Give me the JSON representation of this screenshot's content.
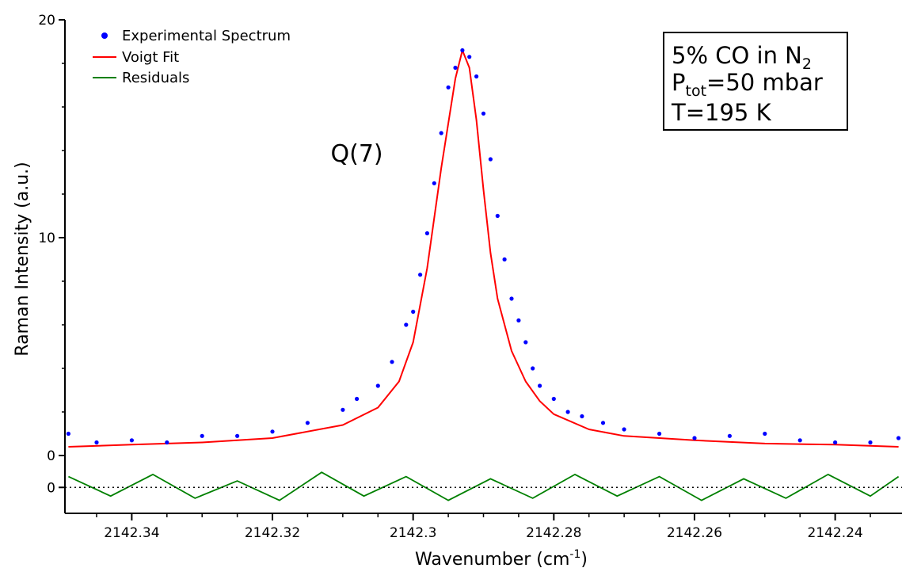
{
  "chart_data": {
    "type": "scatter",
    "xlabel": "Wavenumber (cm",
    "xlabel_sup": "-1",
    "xlabel_end": ")",
    "ylabel": "Raman Intensity (a.u.)",
    "x_reversed": true,
    "xlim": [
      2142.3495,
      2142.2305
    ],
    "ylim": [
      0,
      20
    ],
    "x_ticks": [
      2142.34,
      2142.32,
      2142.3,
      2142.28,
      2142.26,
      2142.24
    ],
    "x_tick_labels": [
      "2142.34",
      "2142.32",
      "2142.3",
      "2142.28",
      "2142.26",
      "2142.24"
    ],
    "y_ticks": [
      0,
      10,
      20
    ],
    "y_tick_labels": [
      "0",
      "10",
      "20"
    ],
    "residual_panel": {
      "ylim": [
        -1.2,
        1.0
      ],
      "y_ticks": [
        0
      ],
      "y_tick_labels": [
        "0"
      ],
      "zero_line": "dotted"
    },
    "grid": false,
    "legend_placement": "top-left",
    "series": [
      {
        "name": "Experimental Spectrum",
        "style": "markers",
        "color": "#0000ff",
        "x": [
          2142.349,
          2142.345,
          2142.34,
          2142.335,
          2142.33,
          2142.325,
          2142.32,
          2142.315,
          2142.31,
          2142.308,
          2142.305,
          2142.303,
          2142.301,
          2142.3,
          2142.299,
          2142.298,
          2142.297,
          2142.296,
          2142.295,
          2142.294,
          2142.293,
          2142.292,
          2142.291,
          2142.29,
          2142.289,
          2142.288,
          2142.287,
          2142.286,
          2142.285,
          2142.284,
          2142.283,
          2142.282,
          2142.28,
          2142.278,
          2142.276,
          2142.273,
          2142.27,
          2142.265,
          2142.26,
          2142.255,
          2142.25,
          2142.245,
          2142.24,
          2142.235,
          2142.231
        ],
        "y": [
          1.0,
          0.6,
          0.7,
          0.6,
          0.9,
          0.9,
          1.1,
          1.5,
          2.1,
          2.6,
          3.2,
          4.3,
          6.0,
          6.6,
          8.3,
          10.2,
          12.5,
          14.8,
          16.9,
          17.8,
          18.6,
          18.3,
          17.4,
          15.7,
          13.6,
          11.0,
          9.0,
          7.2,
          6.2,
          5.2,
          4.0,
          3.2,
          2.6,
          2.0,
          1.8,
          1.5,
          1.2,
          1.0,
          0.8,
          0.9,
          1.0,
          0.7,
          0.6,
          0.6,
          0.8
        ]
      },
      {
        "name": "Voigt Fit",
        "style": "line",
        "color": "#ff0000",
        "x": [
          2142.349,
          2142.34,
          2142.33,
          2142.32,
          2142.31,
          2142.305,
          2142.302,
          2142.3,
          2142.298,
          2142.296,
          2142.294,
          2142.293,
          2142.292,
          2142.291,
          2142.29,
          2142.289,
          2142.288,
          2142.286,
          2142.284,
          2142.282,
          2142.28,
          2142.275,
          2142.27,
          2142.26,
          2142.25,
          2142.24,
          2142.231
        ],
        "y": [
          0.4,
          0.5,
          0.6,
          0.8,
          1.4,
          2.2,
          3.4,
          5.2,
          8.6,
          13.2,
          17.3,
          18.6,
          17.8,
          15.4,
          12.2,
          9.3,
          7.2,
          4.8,
          3.4,
          2.5,
          1.9,
          1.2,
          0.9,
          0.7,
          0.55,
          0.5,
          0.4
        ]
      },
      {
        "name": "Residuals",
        "style": "line",
        "color": "#008000",
        "x": [
          2142.349,
          2142.343,
          2142.337,
          2142.331,
          2142.325,
          2142.319,
          2142.313,
          2142.307,
          2142.301,
          2142.295,
          2142.289,
          2142.283,
          2142.277,
          2142.271,
          2142.265,
          2142.259,
          2142.253,
          2142.247,
          2142.241,
          2142.235,
          2142.231
        ],
        "y": [
          0.5,
          -0.4,
          0.6,
          -0.5,
          0.3,
          -0.6,
          0.7,
          -0.4,
          0.5,
          -0.6,
          0.4,
          -0.5,
          0.6,
          -0.4,
          0.5,
          -0.6,
          0.4,
          -0.5,
          0.6,
          -0.4,
          0.5
        ]
      }
    ],
    "annotations": [
      {
        "text": "Q(7)",
        "x": 2142.308,
        "y": 13.5
      }
    ],
    "info_box": {
      "line1": "5% CO in N",
      "line1_sub": "2",
      "line2_prefix": "P",
      "line2_sub": "tot",
      "line2_suffix": "=50 mbar",
      "line3": "T=195 K"
    }
  }
}
